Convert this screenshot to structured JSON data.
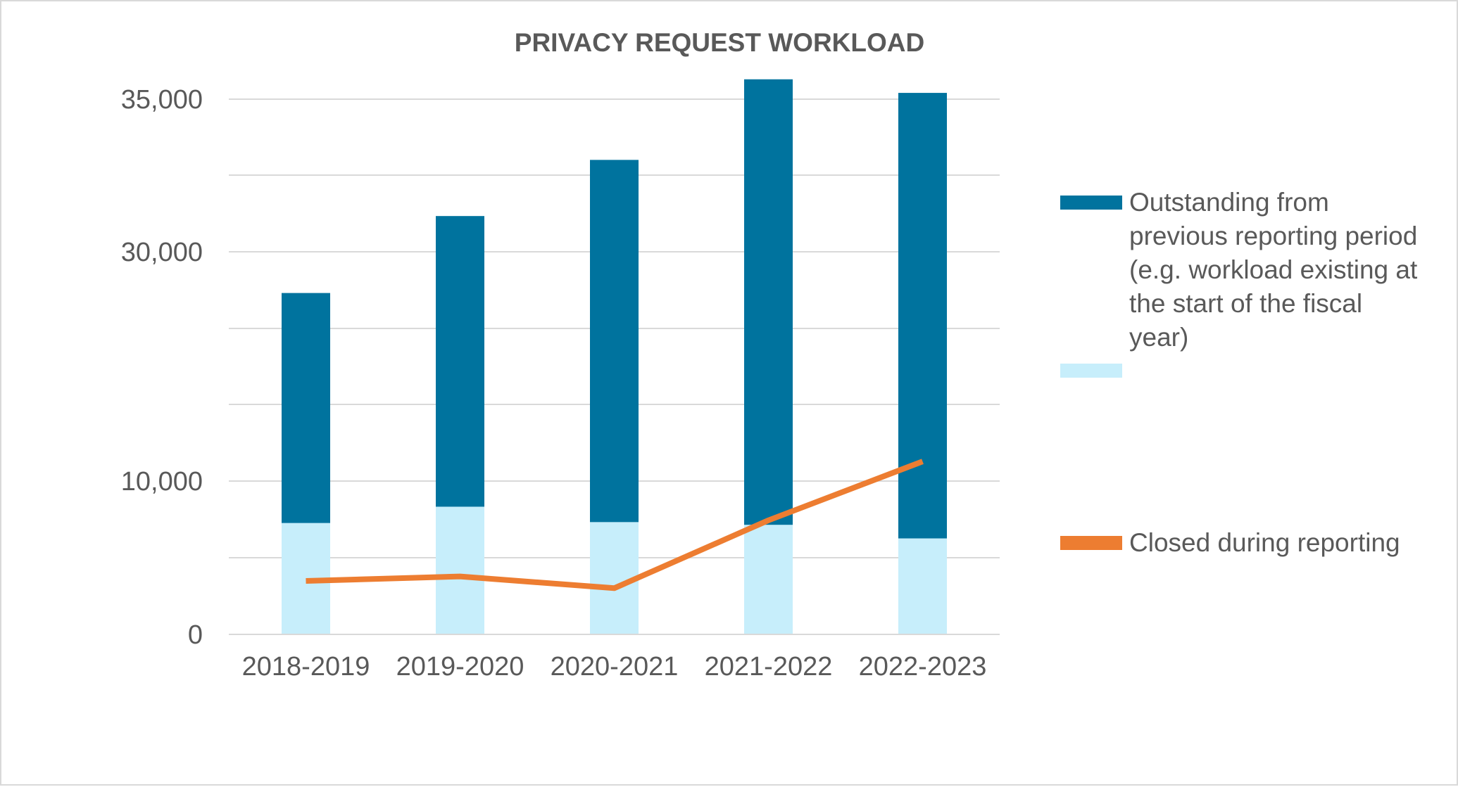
{
  "chart_data": {
    "type": "bar",
    "title": "PRIVACY REQUEST WORKLOAD",
    "categories": [
      "2018-2019",
      "2019-2020",
      "2020-2021",
      "2021-2022",
      "2022-2023"
    ],
    "y_tick_labels": [
      "35,000",
      "30,000",
      "10,000",
      "0"
    ],
    "series": [
      {
        "name": "",
        "kind": "bar-bottom",
        "color": "#c7eefb",
        "values": [
          6150,
          7050,
          6200,
          6050,
          5300
        ]
      },
      {
        "name": "Outstanding from previous reporting period (e.g. workload existing at the start of the fiscal year)",
        "kind": "bar-top",
        "color": "#00739e",
        "values": [
          12700,
          16050,
          20000,
          24600,
          24600
        ]
      },
      {
        "name": "Closed during reporting",
        "kind": "line",
        "color": "#ed7d31",
        "values": [
          2950,
          3200,
          2550,
          6300,
          9550
        ]
      }
    ],
    "legend": {
      "placement": "right",
      "entries": [
        {
          "color": "#00739e",
          "lines": [
            "Outstanding from",
            "previous reporting period",
            "(e.g. workload existing at",
            "the start of the fiscal",
            "year)"
          ]
        },
        {
          "color": "#c7eefb",
          "lines": []
        },
        {
          "color": "#ed7d31",
          "lines": [
            "Closed during reporting"
          ]
        }
      ]
    },
    "grid": true,
    "gridline_color": "#d9d9d9",
    "text_color": "#595959"
  }
}
